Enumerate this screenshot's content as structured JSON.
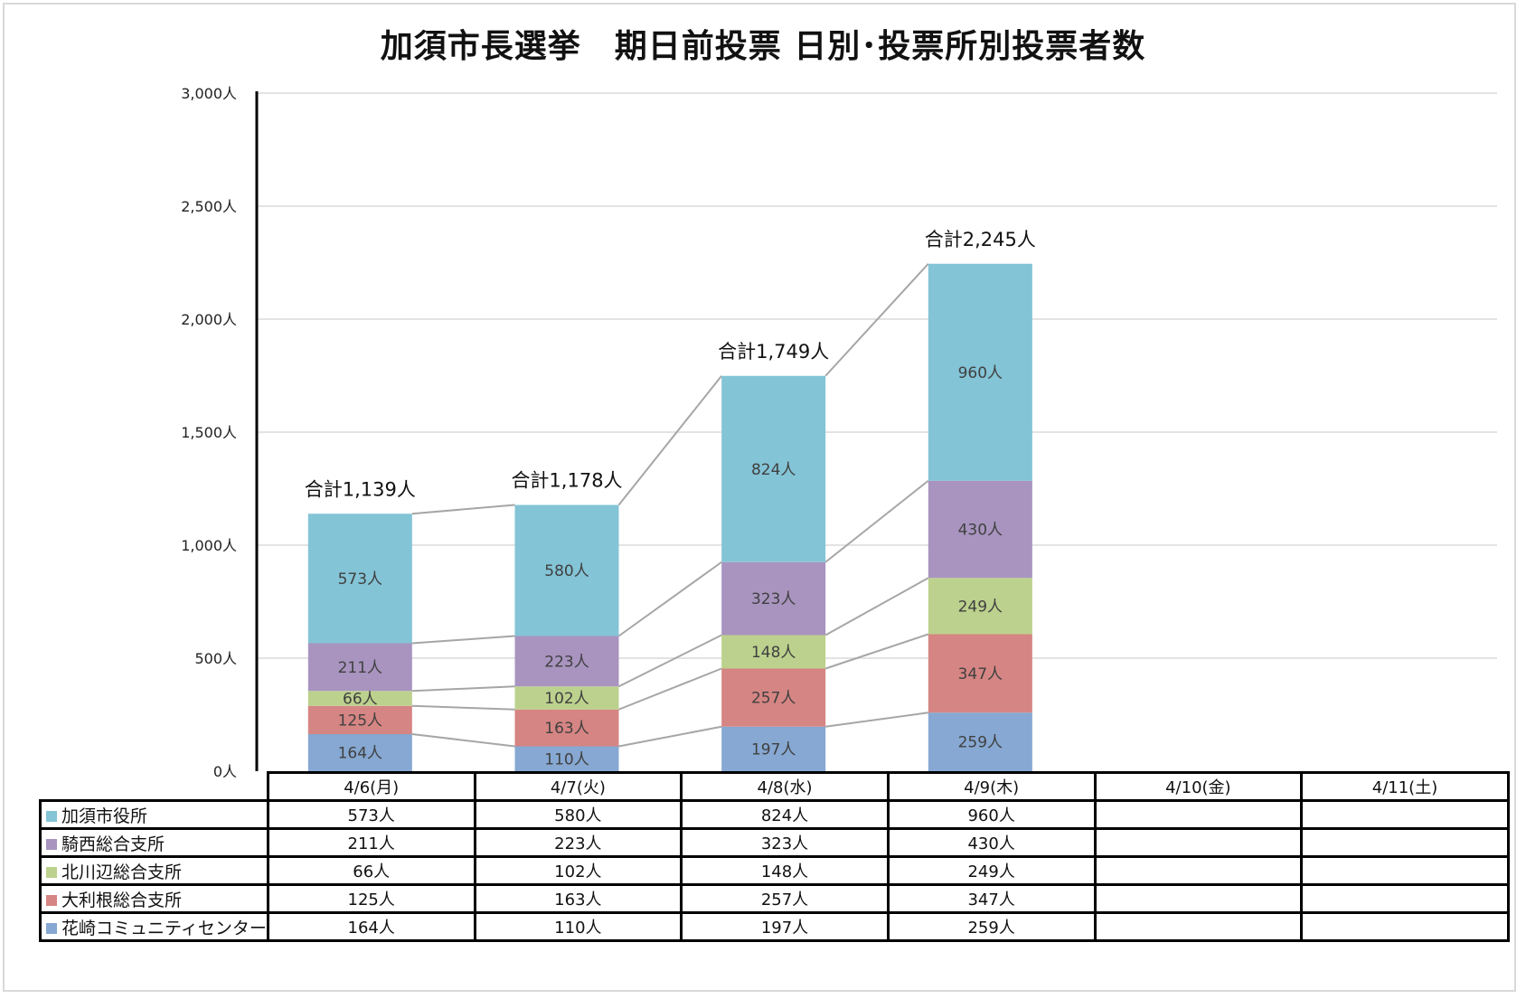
{
  "title": "加須市長選挙　期日前投票 日別･投票所別投票者数",
  "chart_data": {
    "type": "bar",
    "stacked": true,
    "title": "加須市長選挙　期日前投票 日別･投票所別投票者数",
    "xlabel": "",
    "ylabel": "",
    "unit": "人",
    "ylim": [
      0,
      3000
    ],
    "yticks": [
      0,
      500,
      1000,
      1500,
      2000,
      2500,
      3000
    ],
    "ytick_labels": [
      "0人",
      "500人",
      "1,000人",
      "1,500人",
      "2,000人",
      "2,500人",
      "3,000人"
    ],
    "grid": true,
    "legend_placement": "data-table",
    "categories": [
      "4/6(月)",
      "4/7(火)",
      "4/8(水)",
      "4/9(木)",
      "4/10(金)",
      "4/11(土)"
    ],
    "series": [
      {
        "name": "花崎コミュニティセンター",
        "color": "#86a8d2",
        "values": [
          164,
          110,
          197,
          259,
          null,
          null
        ]
      },
      {
        "name": "大利根総合支所",
        "color": "#d58583",
        "values": [
          125,
          163,
          257,
          347,
          null,
          null
        ]
      },
      {
        "name": "北川辺総合支所",
        "color": "#bcd18d",
        "values": [
          66,
          102,
          148,
          249,
          null,
          null
        ]
      },
      {
        "name": "騎西総合支所",
        "color": "#a894bf",
        "values": [
          211,
          223,
          323,
          430,
          null,
          null
        ]
      },
      {
        "name": "加須市役所",
        "color": "#83c4d6",
        "values": [
          573,
          580,
          824,
          960,
          null,
          null
        ]
      }
    ],
    "totals": [
      1139,
      1178,
      1749,
      2245,
      null,
      null
    ],
    "total_labels": [
      "合計1,139人",
      "合計1,178人",
      "合計1,749人",
      "合計2,245人",
      "",
      ""
    ],
    "data_labels": [
      [
        "164人",
        "110人",
        "197人",
        "259人",
        "",
        ""
      ],
      [
        "125人",
        "163人",
        "257人",
        "347人",
        "",
        ""
      ],
      [
        "66人",
        "102人",
        "148人",
        "249人",
        "",
        ""
      ],
      [
        "211人",
        "223人",
        "323人",
        "430人",
        "",
        ""
      ],
      [
        "573人",
        "580人",
        "824人",
        "960人",
        "",
        ""
      ]
    ],
    "series_lines": true
  },
  "table": {
    "rows": [
      {
        "label": "加須市役所",
        "color": "#83c4d6",
        "cells": [
          "573人",
          "580人",
          "824人",
          "960人",
          "",
          ""
        ]
      },
      {
        "label": "騎西総合支所",
        "color": "#a894bf",
        "cells": [
          "211人",
          "223人",
          "323人",
          "430人",
          "",
          ""
        ]
      },
      {
        "label": "北川辺総合支所",
        "color": "#bcd18d",
        "cells": [
          "66人",
          "102人",
          "148人",
          "249人",
          "",
          ""
        ]
      },
      {
        "label": "大利根総合支所",
        "color": "#d58583",
        "cells": [
          "125人",
          "163人",
          "257人",
          "347人",
          "",
          ""
        ]
      },
      {
        "label": "花崎コミュニティセンター",
        "color": "#86a8d2",
        "cells": [
          "164人",
          "110人",
          "197人",
          "259人",
          "",
          ""
        ]
      }
    ]
  }
}
